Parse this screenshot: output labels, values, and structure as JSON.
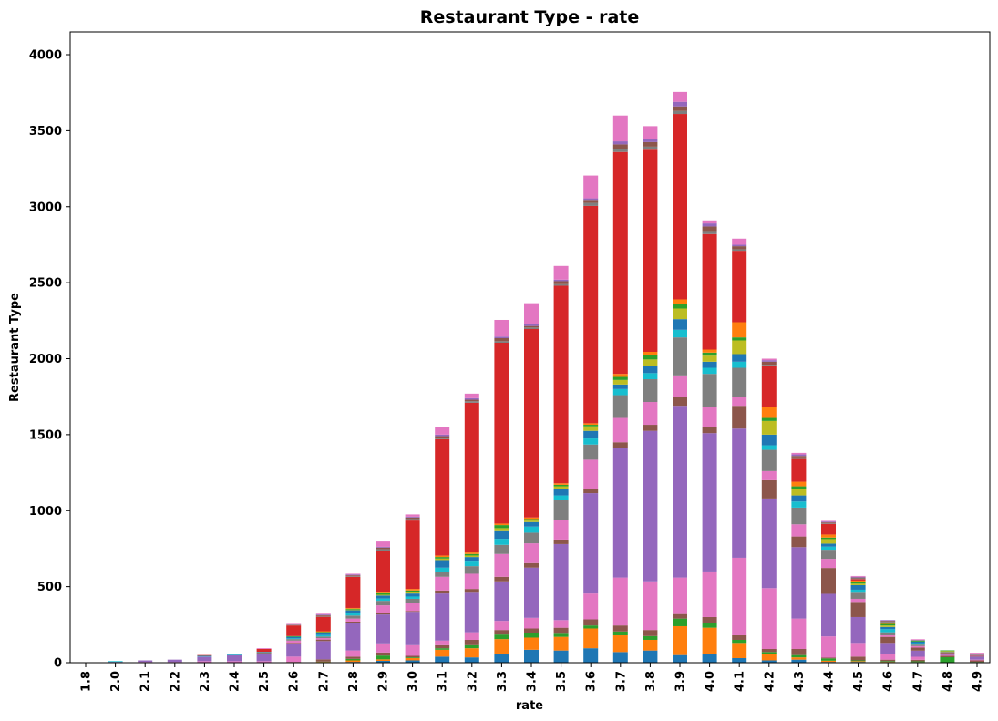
{
  "chart_data": {
    "type": "bar",
    "stacked": true,
    "title": "Restaurant Type - rate",
    "xlabel": "rate",
    "ylabel": "Restaurant Type",
    "ylim": [
      0,
      4150
    ],
    "yticks": [
      0,
      500,
      1000,
      1500,
      2000,
      2500,
      3000,
      3500,
      4000
    ],
    "categories": [
      "1.8",
      "2.0",
      "2.1",
      "2.2",
      "2.3",
      "2.4",
      "2.5",
      "2.6",
      "2.7",
      "2.8",
      "2.9",
      "3.0",
      "3.1",
      "3.2",
      "3.3",
      "3.4",
      "3.5",
      "3.6",
      "3.7",
      "3.8",
      "3.9",
      "4.0",
      "4.1",
      "4.2",
      "4.3",
      "4.4",
      "4.5",
      "4.6",
      "4.7",
      "4.8",
      "4.9"
    ],
    "colors": {
      "blue": "#1f77b4",
      "orange": "#ff7f0e",
      "green": "#2ca02c",
      "red": "#d62728",
      "purple": "#9467bd",
      "brown": "#8c564b",
      "pink": "#e377c2",
      "gray": "#7f7f7f",
      "olive": "#bcbd22",
      "cyan": "#17becf"
    },
    "series": [
      {
        "color": "#1f77b4",
        "values": [
          0,
          0,
          0,
          0,
          0,
          0,
          0,
          0,
          2,
          5,
          12,
          15,
          40,
          35,
          60,
          85,
          80,
          95,
          70,
          80,
          50,
          60,
          30,
          15,
          20,
          5,
          5,
          3,
          3,
          1,
          0
        ]
      },
      {
        "color": "#ff7f0e",
        "values": [
          0,
          0,
          0,
          0,
          0,
          0,
          0,
          0,
          3,
          10,
          10,
          15,
          45,
          60,
          95,
          80,
          90,
          130,
          110,
          70,
          190,
          170,
          100,
          40,
          15,
          8,
          5,
          2,
          1,
          0,
          0
        ]
      },
      {
        "color": "#2ca02c",
        "values": [
          0,
          0,
          0,
          0,
          0,
          0,
          0,
          0,
          2,
          10,
          25,
          5,
          10,
          20,
          30,
          30,
          20,
          20,
          25,
          25,
          50,
          30,
          20,
          15,
          15,
          15,
          5,
          5,
          5,
          35,
          5
        ]
      },
      {
        "color": "#8c564b",
        "values": [
          0,
          0,
          0,
          0,
          0,
          0,
          0,
          5,
          15,
          15,
          20,
          10,
          20,
          35,
          30,
          30,
          40,
          40,
          40,
          40,
          30,
          40,
          30,
          20,
          40,
          5,
          25,
          10,
          10,
          10,
          10
        ]
      },
      {
        "color": "#e377c2",
        "values": [
          0,
          0,
          5,
          5,
          10,
          10,
          10,
          35,
          0,
          40,
          60,
          70,
          30,
          50,
          60,
          70,
          50,
          170,
          315,
          320,
          240,
          300,
          510,
          400,
          200,
          140,
          90,
          40,
          20,
          5,
          5
        ]
      },
      {
        "color": "#9467bd",
        "values": [
          2,
          5,
          10,
          15,
          30,
          40,
          50,
          80,
          120,
          180,
          190,
          220,
          310,
          260,
          260,
          330,
          500,
          660,
          850,
          990,
          1130,
          910,
          850,
          590,
          470,
          280,
          170,
          70,
          40,
          10,
          20
        ]
      },
      {
        "color": "#8c564b",
        "values": [
          0,
          0,
          0,
          0,
          0,
          0,
          5,
          10,
          10,
          10,
          10,
          5,
          20,
          25,
          30,
          30,
          30,
          30,
          40,
          40,
          60,
          40,
          150,
          120,
          70,
          170,
          100,
          40,
          20,
          5,
          5
        ]
      },
      {
        "color": "#e377c2",
        "values": [
          0,
          0,
          0,
          0,
          0,
          0,
          0,
          15,
          10,
          20,
          50,
          50,
          90,
          100,
          150,
          130,
          130,
          190,
          160,
          150,
          140,
          130,
          60,
          60,
          80,
          60,
          20,
          10,
          10,
          0,
          5
        ]
      },
      {
        "color": "#7f7f7f",
        "values": [
          0,
          0,
          0,
          0,
          0,
          0,
          0,
          10,
          10,
          20,
          30,
          30,
          30,
          50,
          60,
          70,
          130,
          100,
          150,
          150,
          250,
          220,
          190,
          140,
          110,
          60,
          40,
          20,
          10,
          5,
          5
        ]
      },
      {
        "color": "#17becf",
        "values": [
          0,
          5,
          0,
          0,
          5,
          5,
          5,
          5,
          10,
          15,
          15,
          15,
          30,
          30,
          40,
          40,
          30,
          40,
          40,
          40,
          50,
          40,
          40,
          30,
          40,
          20,
          20,
          20,
          10,
          0,
          0
        ]
      },
      {
        "color": "#1f77b4",
        "values": [
          0,
          0,
          0,
          0,
          0,
          0,
          0,
          10,
          10,
          20,
          20,
          20,
          50,
          30,
          50,
          30,
          40,
          50,
          30,
          50,
          70,
          40,
          50,
          70,
          40,
          20,
          30,
          15,
          10,
          0,
          0
        ]
      },
      {
        "color": "#bcbd22",
        "values": [
          0,
          0,
          0,
          0,
          0,
          0,
          0,
          0,
          5,
          5,
          5,
          10,
          10,
          10,
          20,
          10,
          20,
          30,
          30,
          40,
          70,
          40,
          90,
          90,
          40,
          30,
          10,
          10,
          0,
          5,
          0
        ]
      },
      {
        "color": "#2ca02c",
        "values": [
          0,
          0,
          0,
          0,
          0,
          0,
          0,
          5,
          5,
          5,
          10,
          10,
          10,
          10,
          20,
          10,
          10,
          10,
          20,
          30,
          30,
          20,
          20,
          20,
          20,
          10,
          10,
          10,
          5,
          5,
          5
        ]
      },
      {
        "color": "#ff7f0e",
        "values": [
          0,
          0,
          0,
          0,
          0,
          0,
          0,
          0,
          5,
          5,
          10,
          10,
          10,
          10,
          10,
          10,
          10,
          10,
          20,
          20,
          30,
          20,
          100,
          70,
          30,
          20,
          10,
          5,
          0,
          0,
          0
        ]
      },
      {
        "color": "#d62728",
        "values": [
          0,
          0,
          0,
          0,
          5,
          5,
          20,
          70,
          95,
          205,
          270,
          450,
          765,
          985,
          1190,
          1240,
          1300,
          1430,
          1460,
          1330,
          1220,
          760,
          470,
          270,
          150,
          70,
          10,
          5,
          0,
          0,
          0
        ]
      },
      {
        "color": "#7f7f7f",
        "values": [
          0,
          0,
          0,
          0,
          0,
          0,
          0,
          5,
          5,
          5,
          10,
          10,
          10,
          10,
          10,
          10,
          10,
          20,
          20,
          20,
          20,
          20,
          10,
          10,
          10,
          5,
          5,
          5,
          5,
          0,
          0
        ]
      },
      {
        "color": "#8c564b",
        "values": [
          0,
          0,
          0,
          0,
          0,
          0,
          0,
          0,
          5,
          5,
          10,
          10,
          10,
          10,
          20,
          10,
          20,
          20,
          30,
          30,
          30,
          30,
          20,
          20,
          10,
          5,
          5,
          5,
          0,
          0,
          0
        ]
      },
      {
        "color": "#9467bd",
        "values": [
          0,
          0,
          0,
          0,
          0,
          0,
          0,
          0,
          5,
          5,
          5,
          5,
          10,
          10,
          10,
          10,
          10,
          10,
          20,
          20,
          30,
          20,
          10,
          10,
          10,
          5,
          5,
          5,
          0,
          0,
          0
        ]
      },
      {
        "color": "#e377c2",
        "values": [
          0,
          0,
          0,
          0,
          0,
          0,
          5,
          5,
          5,
          5,
          35,
          15,
          50,
          30,
          110,
          140,
          90,
          150,
          170,
          85,
          65,
          20,
          40,
          10,
          10,
          5,
          5,
          0,
          5,
          0,
          5
        ]
      }
    ]
  }
}
